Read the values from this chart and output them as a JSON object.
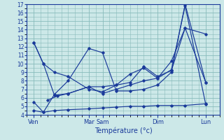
{
  "background_color": "#cce8e8",
  "grid_color": "#88bbbb",
  "line_color": "#1a3a9a",
  "xlabel": "Température (°c)",
  "ylim": [
    4,
    17
  ],
  "xlim": [
    0,
    14
  ],
  "yticks": [
    4,
    5,
    6,
    7,
    8,
    9,
    10,
    11,
    12,
    13,
    14,
    15,
    16,
    17
  ],
  "xtick_positions": [
    0.5,
    4.5,
    5.5,
    9.5,
    13.0
  ],
  "xtick_labels": [
    "Ven",
    "Mar",
    "Sam",
    "Dim",
    "Lun"
  ],
  "series": [
    {
      "x": [
        0.5,
        1.2,
        2.0,
        3.0,
        4.5,
        5.5,
        6.5,
        7.5,
        8.5,
        9.5,
        10.5,
        11.5,
        13.0
      ],
      "y": [
        12.5,
        10.0,
        9.0,
        8.5,
        7.0,
        6.7,
        7.5,
        7.8,
        9.7,
        8.5,
        9.2,
        14.2,
        13.5
      ]
    },
    {
      "x": [
        0.5,
        1.2,
        2.0,
        3.0,
        4.5,
        5.5,
        6.5,
        7.5,
        8.5,
        9.5,
        10.5,
        11.5,
        13.0
      ],
      "y": [
        12.5,
        10.0,
        6.3,
        6.5,
        7.3,
        6.5,
        7.0,
        7.5,
        8.0,
        8.3,
        9.3,
        16.8,
        5.2
      ]
    },
    {
      "x": [
        0.5,
        1.2,
        2.0,
        3.0,
        4.5,
        5.5,
        6.5,
        7.5,
        8.5,
        9.5,
        10.5,
        11.5,
        13.0
      ],
      "y": [
        5.5,
        4.3,
        6.4,
        8.0,
        11.8,
        11.3,
        6.8,
        6.8,
        7.0,
        7.5,
        9.0,
        17.0,
        7.8
      ]
    },
    {
      "x": [
        0.5,
        1.2,
        2.0,
        3.0,
        4.5,
        5.5,
        6.5,
        7.5,
        8.5,
        9.5,
        10.5,
        11.5,
        13.0
      ],
      "y": [
        4.5,
        4.3,
        4.5,
        4.6,
        4.7,
        4.8,
        4.9,
        5.0,
        5.0,
        5.1,
        5.1,
        5.1,
        5.3
      ]
    },
    {
      "x": [
        1.5,
        2.2,
        3.0,
        4.5,
        5.5,
        6.5,
        7.5,
        8.5,
        9.5,
        10.5,
        11.5,
        13.0
      ],
      "y": [
        5.7,
        6.2,
        6.5,
        7.3,
        7.3,
        7.5,
        8.8,
        9.5,
        8.3,
        10.3,
        14.2,
        7.8
      ]
    }
  ]
}
